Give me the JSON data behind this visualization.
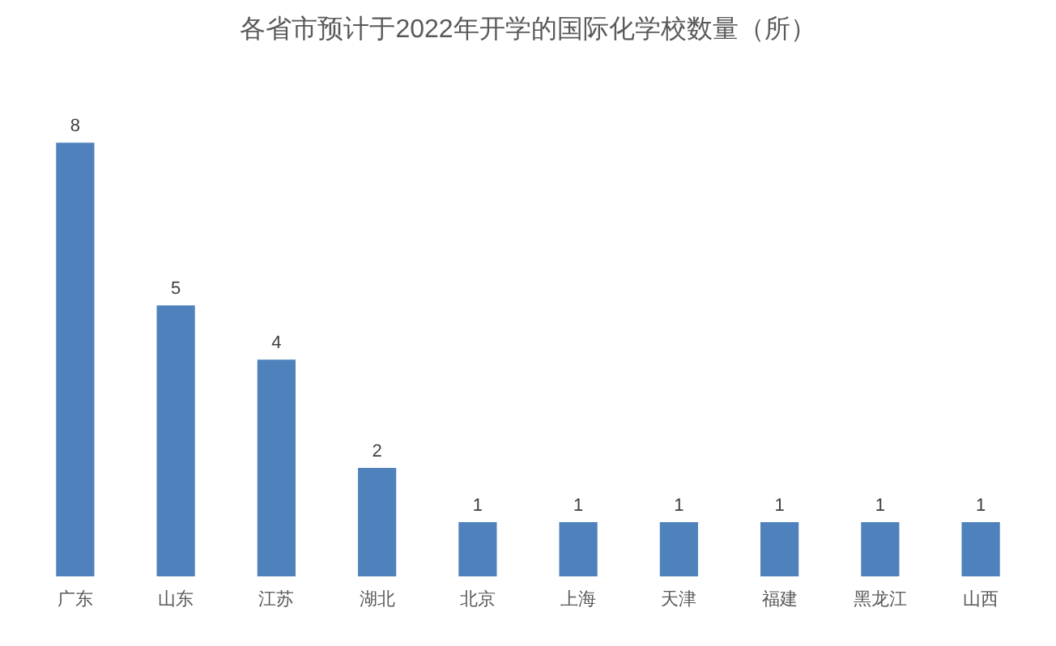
{
  "chart_data": {
    "type": "bar",
    "title": "各省市预计于2022年开学的国际化学校数量（所）",
    "categories": [
      "广东",
      "山东",
      "江苏",
      "湖北",
      "北京",
      "上海",
      "天津",
      "福建",
      "黑龙江",
      "山西"
    ],
    "values": [
      8,
      5,
      4,
      2,
      1,
      1,
      1,
      1,
      1,
      1
    ],
    "color": "#4f81bd",
    "data_labels": true,
    "grid": false
  }
}
